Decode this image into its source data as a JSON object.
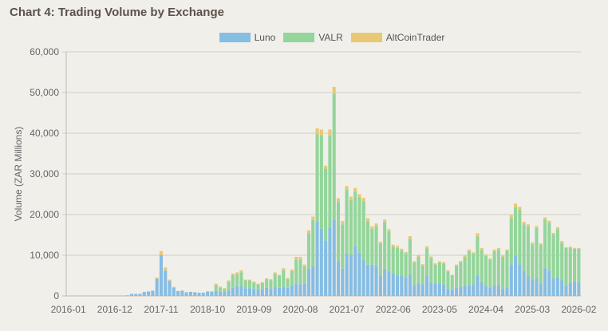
{
  "title": "Chart 4: Trading Volume by Exchange",
  "chart_data": {
    "type": "bar",
    "stacked": true,
    "title": "Chart 4: Trading Volume by Exchange",
    "xlabel": "",
    "ylabel": "Volume (ZAR Millions)",
    "ylim": [
      0,
      60000
    ],
    "yticks": [
      "0",
      "10,000",
      "20,000",
      "30,000",
      "40,000",
      "50,000",
      "60,000"
    ],
    "ytick_values": [
      0,
      10000,
      20000,
      30000,
      40000,
      50000,
      60000
    ],
    "grid": true,
    "legend_position": "top",
    "x_start_month": "2016-01",
    "x_count": 122,
    "xtick_labels": [
      "2016-01",
      "2016-12",
      "2017-11",
      "2018-10",
      "2019-09",
      "2020-08",
      "2021-07",
      "2022-06",
      "2023-05",
      "2024-04",
      "2025-03",
      "2026-02"
    ],
    "series": [
      {
        "name": "Luno",
        "color": "#86bde3",
        "values": [
          50,
          50,
          50,
          50,
          50,
          50,
          50,
          50,
          50,
          50,
          50,
          50,
          100,
          100,
          150,
          500,
          500,
          500,
          1000,
          1100,
          1300,
          4200,
          10000,
          6200,
          3700,
          2100,
          1200,
          1300,
          900,
          1000,
          900,
          800,
          800,
          1100,
          1000,
          1200,
          1000,
          1000,
          1300,
          2000,
          2400,
          2500,
          1900,
          1900,
          1800,
          1600,
          1700,
          2000,
          1700,
          2200,
          2000,
          2300,
          2000,
          2600,
          2900,
          2900,
          3000,
          6700,
          7400,
          18200,
          16500,
          13600,
          16900,
          18800,
          8400,
          6700,
          10400,
          10000,
          12300,
          10600,
          9000,
          7700,
          7700,
          7400,
          4900,
          6700,
          6000,
          5400,
          4900,
          4900,
          4500,
          5200,
          2600,
          3100,
          2900,
          4900,
          3300,
          3100,
          3100,
          2900,
          1800,
          1500,
          2000,
          2300,
          2500,
          2700,
          2900,
          4900,
          3400,
          2500,
          2100,
          2700,
          2700,
          1700,
          2100,
          7800,
          9800,
          7800,
          6200,
          4800,
          3900,
          4300,
          3000,
          6800,
          6200,
          4300,
          4500,
          3900,
          2600,
          3300,
          3600,
          3300
        ]
      },
      {
        "name": "VALR",
        "color": "#93d59a",
        "values": [
          0,
          0,
          0,
          0,
          0,
          0,
          0,
          0,
          0,
          0,
          0,
          0,
          0,
          0,
          0,
          0,
          0,
          0,
          0,
          0,
          0,
          0,
          0,
          0,
          0,
          0,
          0,
          0,
          0,
          0,
          0,
          0,
          0,
          0,
          100,
          1500,
          1100,
          750,
          2200,
          3000,
          2900,
          3300,
          1900,
          1900,
          1500,
          1200,
          1500,
          2100,
          2200,
          3200,
          2900,
          4100,
          2100,
          3500,
          6000,
          6000,
          4200,
          8700,
          11300,
          21500,
          22900,
          17700,
          22500,
          30800,
          14700,
          10900,
          15700,
          13600,
          13300,
          13600,
          14300,
          10700,
          8800,
          9800,
          8000,
          11500,
          9800,
          6700,
          6900,
          6300,
          5900,
          8800,
          5600,
          6500,
          4600,
          6800,
          6000,
          4600,
          5100,
          5100,
          4200,
          3500,
          5400,
          6000,
          7100,
          8300,
          7400,
          9700,
          7900,
          7300,
          6800,
          8300,
          8700,
          7900,
          9000,
          11300,
          12000,
          13300,
          11400,
          12300,
          8800,
          12400,
          9600,
          12000,
          11800,
          10800,
          11900,
          9200,
          9200,
          8600,
          8000,
          8300
        ]
      },
      {
        "name": "AltCoinTrader",
        "color": "#e8c874",
        "values": [
          0,
          0,
          0,
          0,
          0,
          0,
          0,
          0,
          0,
          0,
          0,
          0,
          0,
          0,
          0,
          0,
          0,
          0,
          0,
          0,
          0,
          300,
          1000,
          800,
          300,
          100,
          0,
          0,
          0,
          0,
          0,
          0,
          0,
          0,
          0,
          300,
          200,
          150,
          300,
          500,
          500,
          500,
          200,
          200,
          200,
          200,
          200,
          200,
          200,
          400,
          300,
          400,
          300,
          400,
          700,
          700,
          500,
          700,
          800,
          1500,
          1500,
          700,
          1500,
          1800,
          900,
          800,
          900,
          800,
          900,
          800,
          800,
          700,
          600,
          600,
          400,
          600,
          600,
          500,
          500,
          400,
          400,
          700,
          300,
          400,
          300,
          500,
          400,
          300,
          300,
          300,
          300,
          200,
          300,
          300,
          400,
          400,
          400,
          800,
          500,
          400,
          300,
          400,
          400,
          300,
          300,
          800,
          900,
          800,
          600,
          500,
          400,
          500,
          300,
          500,
          500,
          400,
          500,
          400,
          200,
          200,
          200,
          200
        ]
      }
    ]
  }
}
